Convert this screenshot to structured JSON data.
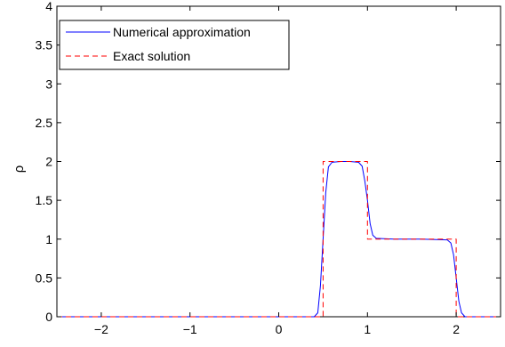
{
  "chart_data": {
    "type": "line",
    "title": "",
    "xlabel": "",
    "ylabel": "ρ",
    "xlim": [
      -2.5,
      2.5
    ],
    "ylim": [
      0,
      4
    ],
    "xticks": [
      -2,
      -1,
      0,
      1,
      2
    ],
    "xtick_labels": [
      "−2",
      "−1",
      "0",
      "1",
      "2"
    ],
    "yticks": [
      0,
      0.5,
      1,
      1.5,
      2,
      2.5,
      3,
      3.5,
      4
    ],
    "ytick_labels": [
      "0",
      "0.5",
      "1",
      "1.5",
      "2",
      "2.5",
      "3",
      "3.5",
      "4"
    ],
    "grid": false,
    "legend_position": "top-left",
    "series": [
      {
        "name": "Numerical approximation",
        "style": "solid",
        "color": "#0000ff",
        "x": [
          -2.5,
          0.4,
          0.44,
          0.47,
          0.5,
          0.53,
          0.56,
          0.6,
          0.7,
          0.8,
          0.9,
          0.94,
          0.97,
          1.0,
          1.03,
          1.06,
          1.1,
          1.3,
          1.6,
          1.9,
          1.94,
          1.97,
          2.0,
          2.03,
          2.06,
          2.1,
          2.5
        ],
        "y": [
          0,
          0,
          0.05,
          0.4,
          1.0,
          1.6,
          1.93,
          1.99,
          2.0,
          2.0,
          1.99,
          1.94,
          1.75,
          1.5,
          1.2,
          1.05,
          1.01,
          1.0,
          1.0,
          0.99,
          0.95,
          0.8,
          0.5,
          0.2,
          0.05,
          0.0,
          0
        ]
      },
      {
        "name": "Exact solution",
        "style": "dashed",
        "color": "#ff0000",
        "x": [
          -2.5,
          0.5,
          0.5,
          1.0,
          1.0,
          2.0,
          2.0,
          2.5
        ],
        "y": [
          0,
          0,
          2,
          2,
          1,
          1,
          0,
          0
        ]
      }
    ]
  }
}
